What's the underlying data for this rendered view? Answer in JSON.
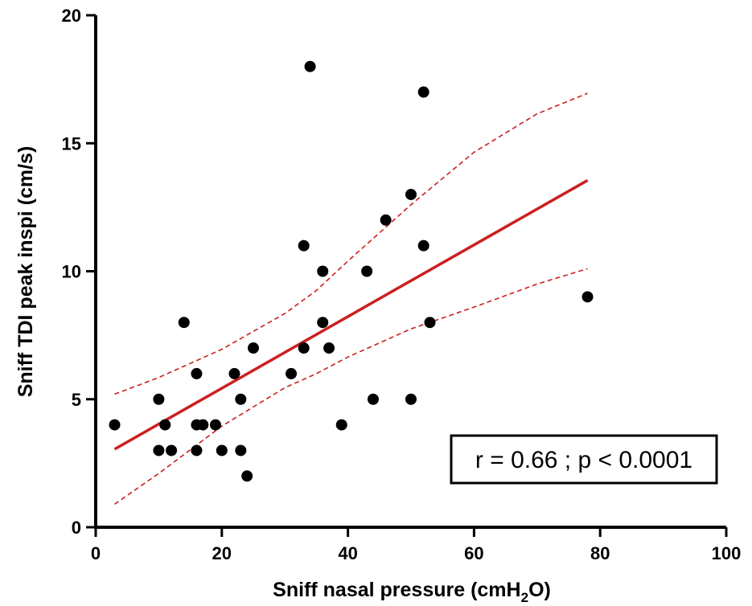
{
  "chart_data": {
    "type": "scatter",
    "xlabel_main": "Sniff nasal pressure (cmH",
    "xlabel_sub": "2",
    "xlabel_end": "O)",
    "ylabel": "Sniff TDI peak inspi (cm/s)",
    "xlim": [
      0,
      100
    ],
    "ylim": [
      0,
      20
    ],
    "xticks": [
      0,
      20,
      40,
      60,
      80,
      100
    ],
    "yticks": [
      0,
      5,
      10,
      15,
      20
    ],
    "xtick_labels": [
      "0",
      "20",
      "40",
      "60",
      "80",
      "100"
    ],
    "ytick_labels": [
      "0",
      "5",
      "10",
      "15",
      "20"
    ],
    "grid": false,
    "points": {
      "x": [
        3,
        10,
        10,
        11,
        12,
        14,
        16,
        16,
        16,
        17,
        19,
        20,
        22,
        23,
        23,
        24,
        25,
        31,
        33,
        33,
        34,
        36,
        36,
        37,
        39,
        43,
        44,
        46,
        50,
        50,
        52,
        52,
        53,
        78
      ],
      "y": [
        4,
        5,
        3,
        4,
        3,
        8,
        6,
        4,
        3,
        4,
        4,
        3,
        6,
        5,
        3,
        2,
        7,
        6,
        11,
        7,
        18,
        10,
        8,
        7,
        4,
        10,
        5,
        12,
        13,
        5,
        17,
        11,
        8,
        9
      ]
    },
    "regression": {
      "x": [
        3,
        78
      ],
      "y": [
        3.05,
        13.55
      ]
    },
    "ci_upper": {
      "x": [
        3,
        10,
        20,
        30,
        35,
        40,
        50,
        60,
        70,
        78
      ],
      "y": [
        5.2,
        5.85,
        6.95,
        8.35,
        9.25,
        10.4,
        12.6,
        14.65,
        16.15,
        16.95
      ]
    },
    "ci_lower": {
      "x": [
        3,
        10,
        20,
        30,
        35,
        40,
        50,
        60,
        70,
        78
      ],
      "y": [
        0.9,
        2.1,
        3.95,
        5.45,
        6.0,
        6.65,
        7.75,
        8.6,
        9.5,
        10.1
      ]
    },
    "annotation": "r = 0.66 ; p < 0.0001",
    "colors": {
      "points": "#000000",
      "fit": "#cc1f1f",
      "ci": "#cc1f1f",
      "axes": "#000000"
    }
  }
}
